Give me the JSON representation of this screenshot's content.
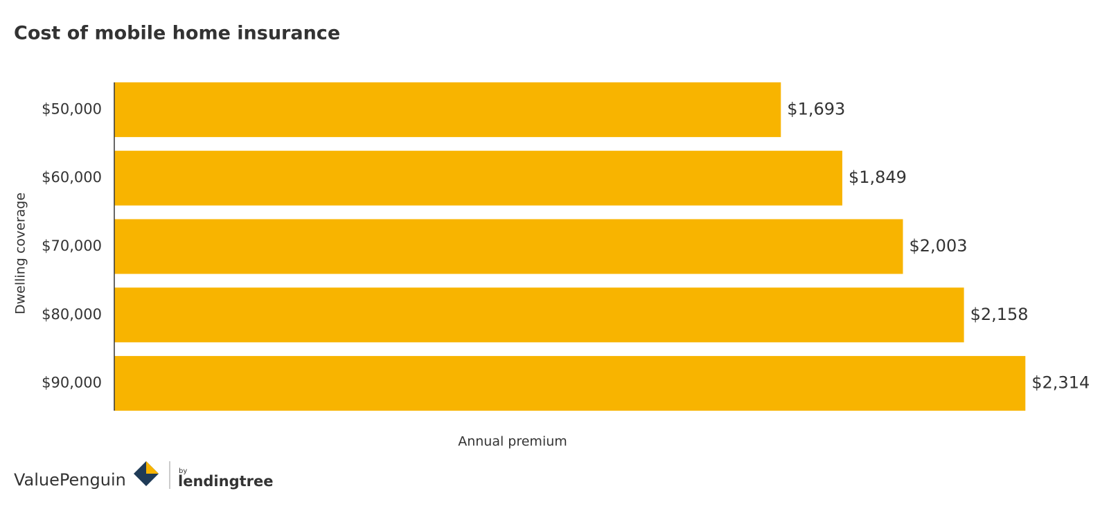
{
  "chart_data": {
    "type": "hbar",
    "title": "Cost of mobile home insurance",
    "y_label": "Dwelling coverage",
    "x_label": "Annual premium",
    "categories": [
      "$50,000",
      "$60,000",
      "$70,000",
      "$80,000",
      "$90,000"
    ],
    "values": [
      1693,
      1849,
      2003,
      2158,
      2314
    ],
    "value_labels": [
      "$1,693",
      "$1,849",
      "$2,003",
      "$2,158",
      "$2,314"
    ],
    "color": "#f8b400",
    "xlim": [
      0,
      2500
    ]
  },
  "footer": {
    "brand": "ValuePenguin",
    "by": "by",
    "partner": "lendingtree"
  }
}
